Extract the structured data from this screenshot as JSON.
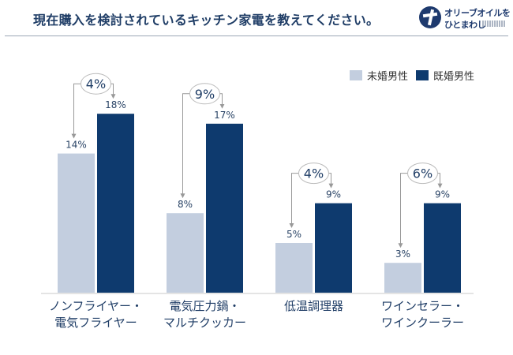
{
  "header": {
    "title": "現在購入を検討されているキッチン家電を教えてください。",
    "logo_line1": "オリーブオイルを",
    "logo_line2": "ひとまわし"
  },
  "colors": {
    "unmarried": "#c3cedf",
    "married": "#0e3a6e",
    "arrow": "#999999",
    "title": "#1f3d66"
  },
  "chart_data": {
    "type": "bar",
    "title": "現在購入を検討されているキッチン家電を教えてください。",
    "xlabel": "",
    "ylabel": "",
    "ylim": [
      0,
      20
    ],
    "grid": false,
    "legend_position": "top-right",
    "categories": [
      [
        "ノンフライヤー・",
        "電気フライヤー"
      ],
      [
        "電気圧力鍋・",
        "マルチクッカー"
      ],
      [
        "低温調理器"
      ],
      [
        "ワインセラー・",
        "ワインクーラー"
      ]
    ],
    "series": [
      {
        "name": "未婚男性",
        "values": [
          14,
          8,
          5,
          3
        ],
        "labels": [
          "14%",
          "8%",
          "5%",
          "3%"
        ]
      },
      {
        "name": "既婚男性",
        "values": [
          18,
          17,
          9,
          9
        ],
        "labels": [
          "18%",
          "17%",
          "9%",
          "9%"
        ]
      }
    ],
    "differences": [
      "4%",
      "9%",
      "4%",
      "6%"
    ]
  }
}
